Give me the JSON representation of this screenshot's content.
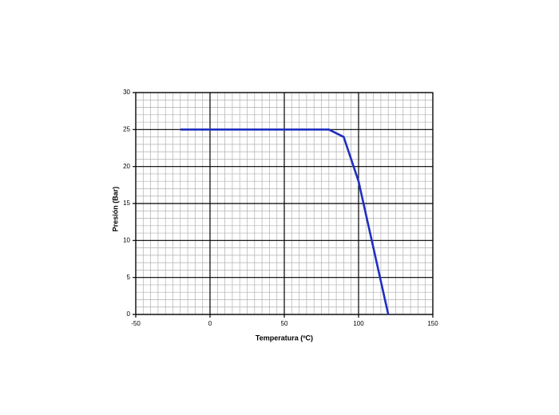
{
  "chart_data": {
    "type": "line",
    "xlabel": "Temperatura (ºC)",
    "ylabel": "Presión  (Bar)",
    "x": [
      -20,
      80,
      90,
      100,
      120
    ],
    "series": [
      {
        "color": "#1f2fc0",
        "values": [
          25,
          25,
          24,
          18,
          0
        ]
      }
    ],
    "xlim": [
      -50,
      150
    ],
    "xticks": [
      -50,
      0,
      50,
      100,
      150
    ],
    "ylim": [
      0,
      30
    ],
    "yticks": [
      0,
      5,
      10,
      15,
      20,
      25,
      30
    ],
    "xminorticks": [
      -45,
      -40,
      -35,
      -30,
      -25,
      -20,
      -15,
      -10,
      -5,
      5,
      10,
      15,
      20,
      25,
      30,
      35,
      40,
      45,
      55,
      60,
      65,
      70,
      75,
      80,
      85,
      90,
      95,
      105,
      110,
      115,
      120,
      125,
      130,
      135,
      140,
      145
    ],
    "yminorticks": [
      1,
      2,
      3,
      4,
      6,
      7,
      8,
      9,
      11,
      12,
      13,
      14,
      16,
      17,
      18,
      19,
      21,
      22,
      23,
      24,
      26,
      27,
      28,
      29
    ],
    "grid": true
  }
}
